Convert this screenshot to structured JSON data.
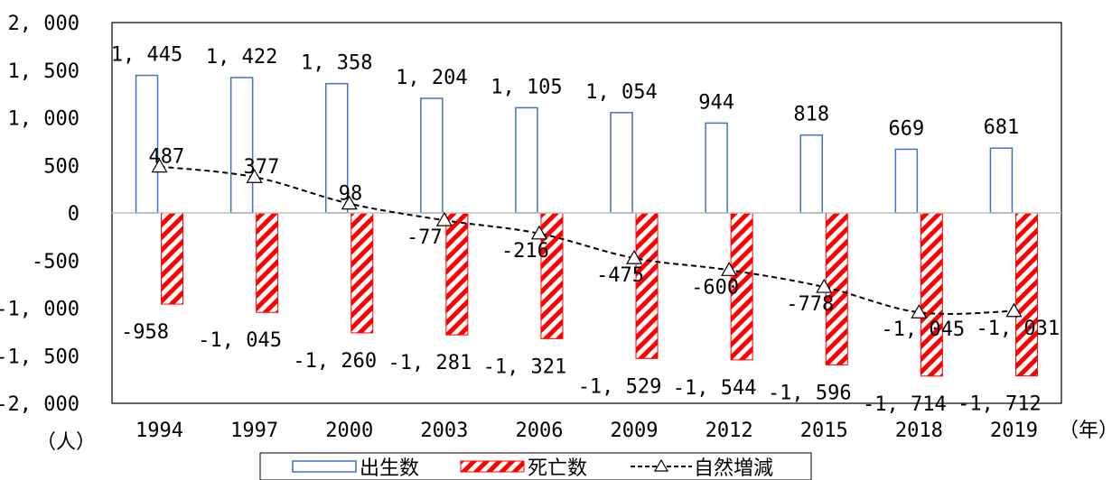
{
  "chart_data": {
    "type": "bar",
    "categories": [
      "1994",
      "1997",
      "2000",
      "2003",
      "2006",
      "2009",
      "2012",
      "2015",
      "2018",
      "2019"
    ],
    "series": [
      {
        "name": "出生数",
        "kind": "bar",
        "style": "hollow-outline",
        "color": "#4472C4",
        "values": [
          1445,
          1422,
          1358,
          1204,
          1105,
          1054,
          944,
          818,
          669,
          681
        ],
        "labels": [
          "1, 445",
          "1, 422",
          "1, 358",
          "1, 204",
          "1, 105",
          "1, 054",
          "944",
          "818",
          "669",
          "681"
        ]
      },
      {
        "name": "死亡数",
        "kind": "bar",
        "style": "red-diagonal-hatch",
        "color": "#FF0000",
        "values": [
          -958,
          -1045,
          -1260,
          -1281,
          -1321,
          -1529,
          -1544,
          -1596,
          -1714,
          -1712
        ],
        "labels": [
          "-958",
          "-1, 045",
          "-1, 260",
          "-1, 281",
          "-1, 321",
          "-1, 529",
          "-1, 544",
          "-1, 596",
          "-1, 714",
          "-1, 712"
        ]
      },
      {
        "name": "自然増減",
        "kind": "line",
        "style": "dashed-triangle-markers",
        "color": "#000000",
        "values": [
          487,
          377,
          98,
          -77,
          -216,
          -475,
          -600,
          -778,
          -1045,
          -1031
        ],
        "labels": [
          "487",
          "377",
          "98",
          "-77",
          "-216",
          "-475",
          "-600",
          "-778",
          "-1, 045",
          "-1, 031"
        ]
      }
    ],
    "y_axis": {
      "min": -2000,
      "max": 2000,
      "step": 500,
      "tick_labels": [
        "2, 000",
        "1, 500",
        "1, 000",
        "500",
        "0",
        "-500",
        "-1, 000",
        "-1, 500",
        "-2, 000"
      ],
      "unit_label": "（人）"
    },
    "x_axis": {
      "unit_label": "（年）"
    },
    "grid": false,
    "legend_position": "bottom"
  }
}
